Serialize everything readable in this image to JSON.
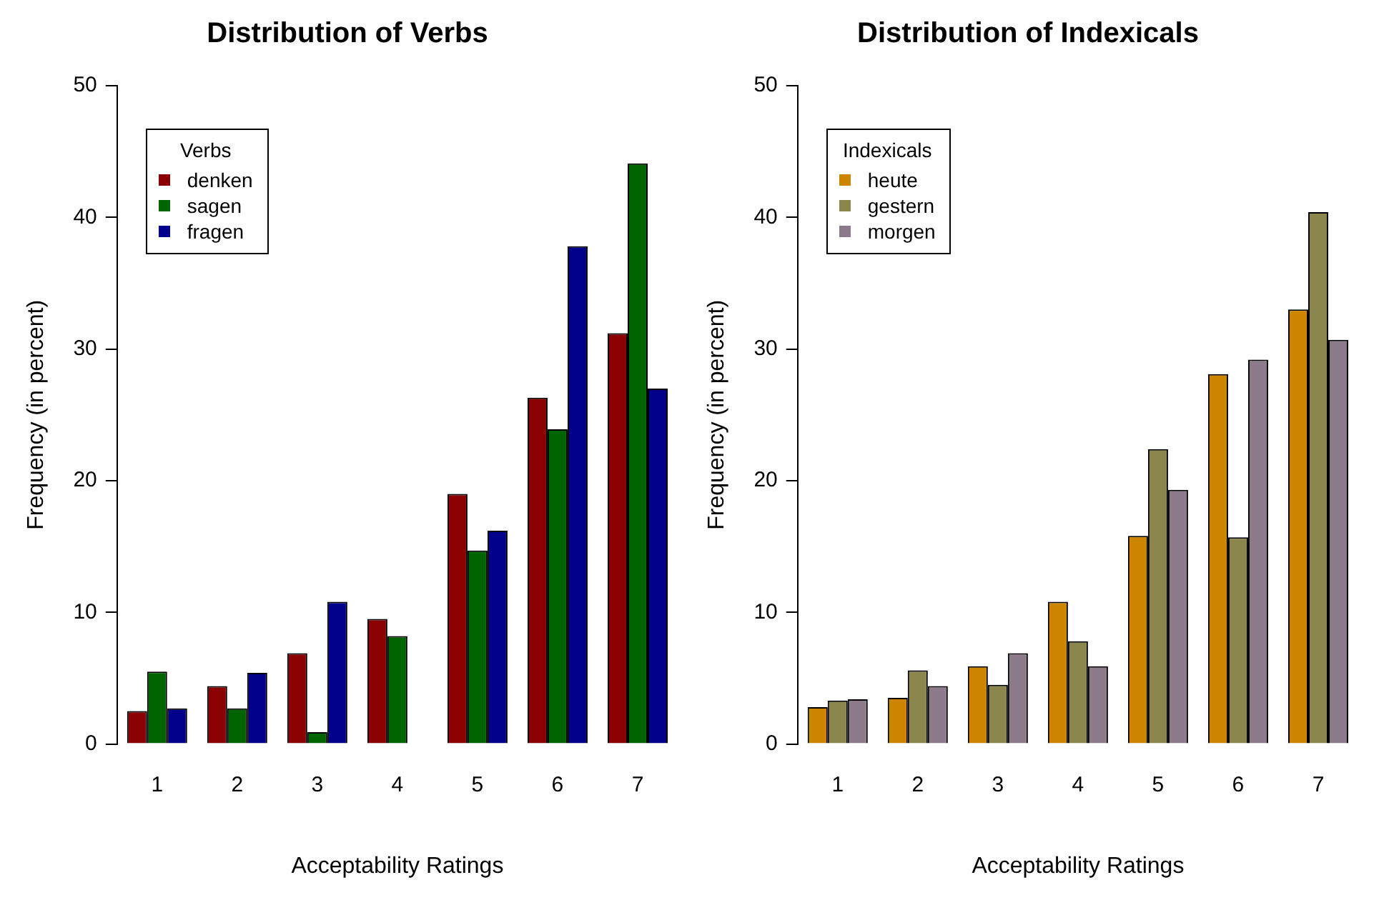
{
  "chart_data": [
    {
      "type": "bar",
      "title": "Distribution of Verbs",
      "xlabel": "Acceptability Ratings",
      "ylabel": "Frequency (in percent)",
      "legend_title": "Verbs",
      "legend": "top left",
      "categories": [
        "1",
        "2",
        "3",
        "4",
        "5",
        "6",
        "7"
      ],
      "ylim": [
        0,
        50
      ],
      "yticks": [
        0,
        10,
        20,
        30,
        40,
        50
      ],
      "series": [
        {
          "name": "denken",
          "color": "#8b0000",
          "values": [
            2.5,
            4.4,
            6.9,
            9.5,
            19.0,
            26.3,
            31.2
          ]
        },
        {
          "name": "sagen",
          "color": "#006400",
          "values": [
            5.5,
            2.7,
            0.9,
            8.2,
            14.7,
            23.9,
            44.1
          ]
        },
        {
          "name": "fragen",
          "color": "#00008b",
          "values": [
            2.7,
            5.4,
            10.8,
            0,
            16.2,
            37.8,
            27.0
          ]
        }
      ]
    },
    {
      "type": "bar",
      "title": "Distribution of Indexicals",
      "xlabel": "Acceptability Ratings",
      "ylabel": "Frequency (in percent)",
      "legend_title": "Indexicals",
      "legend": "top left",
      "categories": [
        "1",
        "2",
        "3",
        "4",
        "5",
        "6",
        "7"
      ],
      "ylim": [
        0,
        50
      ],
      "yticks": [
        0,
        10,
        20,
        30,
        40,
        50
      ],
      "series": [
        {
          "name": "heute",
          "color": "#cd8500",
          "values": [
            2.8,
            3.5,
            5.9,
            10.8,
            15.8,
            28.1,
            33.0
          ]
        },
        {
          "name": "gestern",
          "color": "#8b864e",
          "values": [
            3.3,
            5.6,
            4.5,
            7.8,
            22.4,
            15.7,
            40.4
          ]
        },
        {
          "name": "morgen",
          "color": "#8b7b8b",
          "values": [
            3.4,
            4.4,
            6.9,
            5.9,
            19.3,
            29.2,
            30.7
          ]
        }
      ]
    }
  ]
}
